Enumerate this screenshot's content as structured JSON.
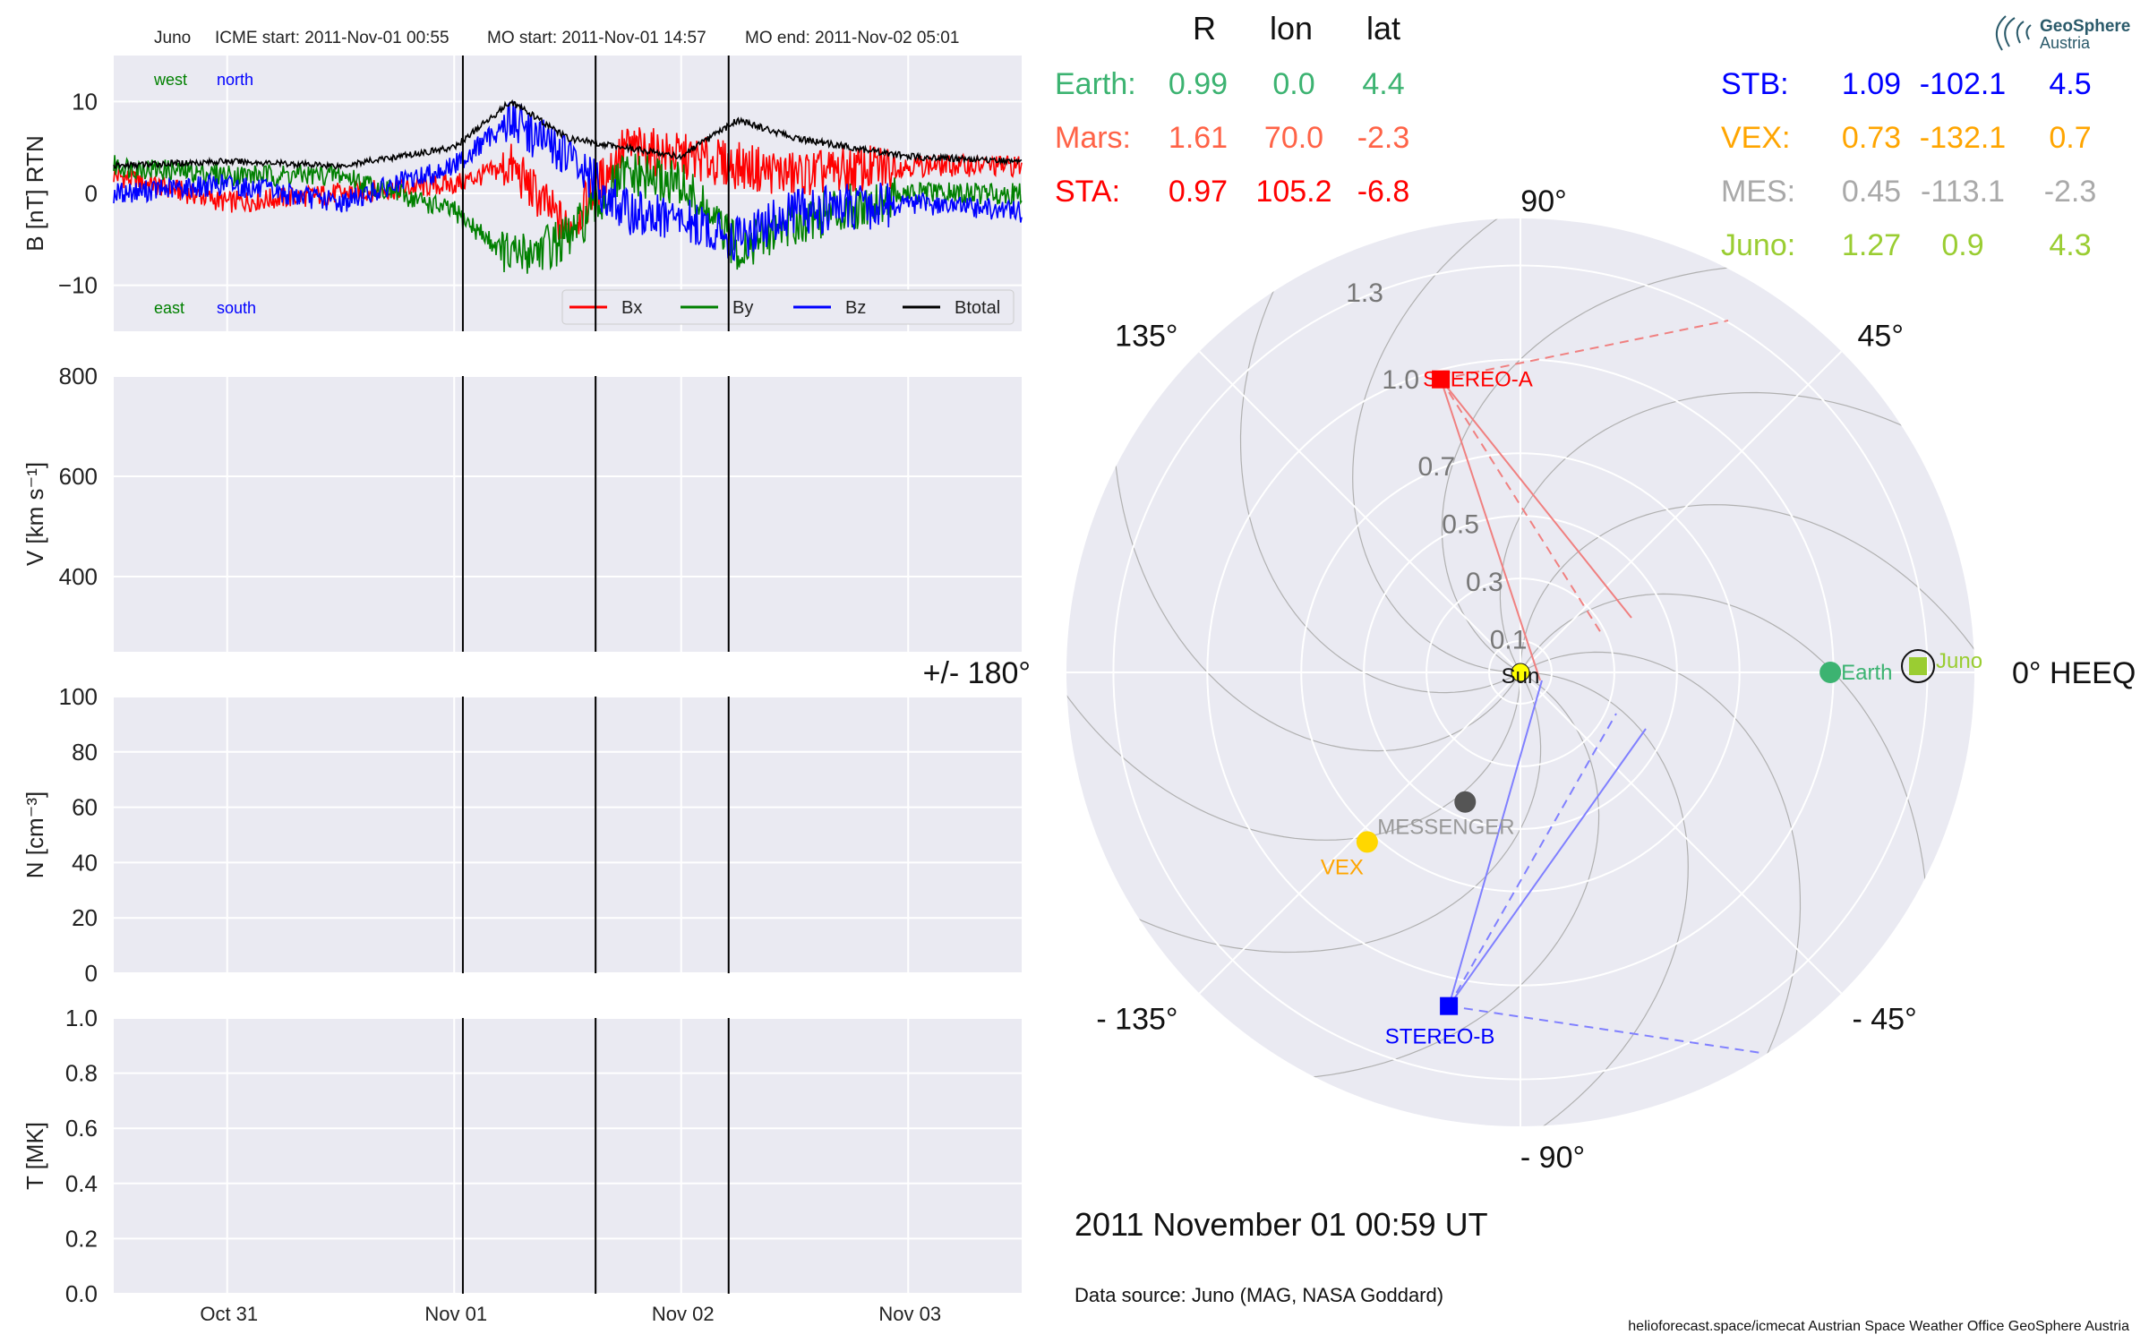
{
  "header": {
    "spacecraft": "Juno",
    "icme_start": "ICME start: 2011-Nov-01 00:55",
    "mo_start": "MO start: 2011-Nov-01 14:57",
    "mo_end": "MO end: 2011-Nov-02 05:01"
  },
  "logo": {
    "line1": "GeoSphere",
    "line2": "Austria"
  },
  "colors": {
    "bx": "#ff0000",
    "by": "#008000",
    "bz": "#0000ff",
    "btotal": "#000000",
    "earth": "#3cb371",
    "mars": "#ff6347",
    "sta": "#ff0000",
    "stb": "#0000ff",
    "vex": "#ffa500",
    "mes": "#a9a9a9",
    "juno": "#9acd32",
    "panel_bg": "#eaeaf2"
  },
  "chart_data": [
    {
      "type": "line",
      "panel": "magnetic_field",
      "ylabel": "B [nT] RTN",
      "ylim": [
        -15,
        15
      ],
      "yticks": [
        "10",
        "0",
        "−10"
      ],
      "ytick_values": [
        10,
        0,
        -10
      ],
      "annotations": {
        "top_left": "west",
        "top_right": "north",
        "bottom_left": "east",
        "bottom_right": "south"
      },
      "legend": [
        "Bx",
        "By",
        "Bz",
        "Btotal"
      ],
      "legend_position": "lower-right",
      "x_range_days": [
        "2011-10-30 12:00",
        "2011-11-03 12:00"
      ],
      "series": [
        {
          "name": "Bx",
          "x": [
            "2011-10-30 12:00",
            "2011-10-31 00:00",
            "2011-10-31 12:00",
            "2011-11-01 00:00",
            "2011-11-01 06:00",
            "2011-11-01 12:00",
            "2011-11-01 18:00",
            "2011-11-02 00:00",
            "2011-11-02 06:00",
            "2011-11-02 12:00",
            "2011-11-03 00:00",
            "2011-11-03 12:00"
          ],
          "y": [
            2,
            -1,
            0,
            1,
            3,
            -4,
            5,
            4,
            3,
            2,
            3,
            3
          ]
        },
        {
          "name": "By",
          "x": [
            "2011-10-30 12:00",
            "2011-10-31 00:00",
            "2011-10-31 12:00",
            "2011-11-01 00:00",
            "2011-11-01 06:00",
            "2011-11-01 12:00",
            "2011-11-01 18:00",
            "2011-11-02 00:00",
            "2011-11-02 06:00",
            "2011-11-02 12:00",
            "2011-11-03 00:00",
            "2011-11-03 12:00"
          ],
          "y": [
            3,
            2,
            2,
            -2,
            -7,
            -5,
            2,
            1,
            -6,
            -3,
            0,
            0
          ]
        },
        {
          "name": "Bz",
          "x": [
            "2011-10-30 12:00",
            "2011-10-31 00:00",
            "2011-10-31 12:00",
            "2011-11-01 00:00",
            "2011-11-01 06:00",
            "2011-11-01 12:00",
            "2011-11-01 18:00",
            "2011-11-02 00:00",
            "2011-11-02 06:00",
            "2011-11-02 12:00",
            "2011-11-03 00:00",
            "2011-11-03 12:00"
          ],
          "y": [
            0,
            1,
            -1,
            3,
            8,
            4,
            -2,
            -3,
            -5,
            -2,
            -1,
            -2
          ]
        },
        {
          "name": "Btotal",
          "x": [
            "2011-10-30 12:00",
            "2011-10-31 00:00",
            "2011-10-31 12:00",
            "2011-11-01 00:00",
            "2011-11-01 06:00",
            "2011-11-01 12:00",
            "2011-11-01 18:00",
            "2011-11-02 00:00",
            "2011-11-02 06:00",
            "2011-11-02 12:00",
            "2011-11-03 00:00",
            "2011-11-03 12:00"
          ],
          "y": [
            3,
            3.5,
            3,
            5,
            10,
            6,
            5,
            4,
            8,
            6,
            4,
            3.5
          ]
        }
      ],
      "vlines": [
        "2011-11-01 00:55",
        "2011-11-01 14:57",
        "2011-11-02 05:01"
      ]
    },
    {
      "type": "line",
      "panel": "speed",
      "ylabel": "V [km s⁻¹]",
      "ylim": [
        250,
        800
      ],
      "yticks": [
        "800",
        "600",
        "400"
      ],
      "ytick_values": [
        800,
        600,
        400
      ],
      "series": [],
      "vlines": [
        "2011-11-01 00:55",
        "2011-11-01 14:57",
        "2011-11-02 05:01"
      ]
    },
    {
      "type": "line",
      "panel": "density",
      "ylabel": "N [cm⁻³]",
      "ylim": [
        0,
        100
      ],
      "yticks": [
        "100",
        "80",
        "60",
        "40",
        "20",
        "0"
      ],
      "ytick_values": [
        100,
        80,
        60,
        40,
        20,
        0
      ],
      "series": [],
      "vlines": [
        "2011-11-01 00:55",
        "2011-11-01 14:57",
        "2011-11-02 05:01"
      ]
    },
    {
      "type": "line",
      "panel": "temperature",
      "ylabel": "T [MK]",
      "ylim": [
        0,
        1
      ],
      "yticks": [
        "1.0",
        "0.8",
        "0.6",
        "0.4",
        "0.2",
        "0.0"
      ],
      "ytick_values": [
        1.0,
        0.8,
        0.6,
        0.4,
        0.2,
        0.0
      ],
      "xticks": [
        "Oct 31",
        "Nov 01",
        "Nov 02",
        "Nov 03"
      ],
      "xtick_dates": [
        "2011-10-31",
        "2011-11-01",
        "2011-11-02",
        "2011-11-03"
      ],
      "series": [],
      "vlines": [
        "2011-11-01 00:55",
        "2011-11-01 14:57",
        "2011-11-02 05:01"
      ]
    },
    {
      "type": "scatter",
      "panel": "polar_positions",
      "radial_ticks": [
        "0.1",
        "0.3",
        "0.5",
        "0.7",
        "1.0",
        "1.3"
      ],
      "radial_tick_values": [
        0.1,
        0.3,
        0.5,
        0.7,
        1.0,
        1.3
      ],
      "angle_labels": [
        "0° HEEQ",
        "45°",
        "90°",
        "135°",
        "+/- 180°",
        "- 135°",
        "- 90°",
        "- 45°"
      ],
      "angle_values": [
        0,
        45,
        90,
        135,
        180,
        -135,
        -90,
        -45
      ],
      "bodies": [
        {
          "name": "Sun",
          "r": 0.0,
          "lon": 0.0,
          "marker": "circle",
          "color": "#ffff00"
        },
        {
          "name": "Earth",
          "r": 0.99,
          "lon": 0.0,
          "marker": "circle",
          "color": "#3cb371"
        },
        {
          "name": "Juno",
          "r": 1.27,
          "lon": 0.9,
          "marker": "square",
          "color": "#9acd32"
        },
        {
          "name": "STEREO-A",
          "r": 0.97,
          "lon": 105.2,
          "marker": "square",
          "color": "#ff0000"
        },
        {
          "name": "STEREO-B",
          "r": 1.09,
          "lon": -102.1,
          "marker": "square",
          "color": "#0000ff"
        },
        {
          "name": "VEX",
          "r": 0.73,
          "lon": -132.1,
          "marker": "circle",
          "color": "#ffd700"
        },
        {
          "name": "MESSENGER",
          "r": 0.45,
          "lon": -113.1,
          "marker": "circle",
          "color": "#555555"
        }
      ]
    }
  ],
  "positions_table": {
    "header": [
      "R",
      "lon",
      "lat"
    ],
    "left": [
      {
        "name": "Earth:",
        "r": "0.99",
        "lon": "0.0",
        "lat": "4.4",
        "color": "#3cb371"
      },
      {
        "name": "Mars:",
        "r": "1.61",
        "lon": "70.0",
        "lat": "-2.3",
        "color": "#ff6347"
      },
      {
        "name": "STA:",
        "r": "0.97",
        "lon": "105.2",
        "lat": "-6.8",
        "color": "#ff0000"
      }
    ],
    "right": [
      {
        "name": "STB:",
        "r": "1.09",
        "lon": "-102.1",
        "lat": "4.5",
        "color": "#0000ff"
      },
      {
        "name": "VEX:",
        "r": "0.73",
        "lon": "-132.1",
        "lat": "0.7",
        "color": "#ffa500"
      },
      {
        "name": "MES:",
        "r": "0.45",
        "lon": "-113.1",
        "lat": "-2.3",
        "color": "#a9a9a9"
      },
      {
        "name": "Juno:",
        "r": "1.27",
        "lon": "0.9",
        "lat": "4.3",
        "color": "#9acd32"
      }
    ]
  },
  "date_text": "2011 November 01  00:59 UT",
  "data_source": "Data source: Juno (MAG, NASA Goddard)",
  "footer": "helioforecast.space/icmecat   Austrian Space Weather Office   GeoSphere Austria"
}
